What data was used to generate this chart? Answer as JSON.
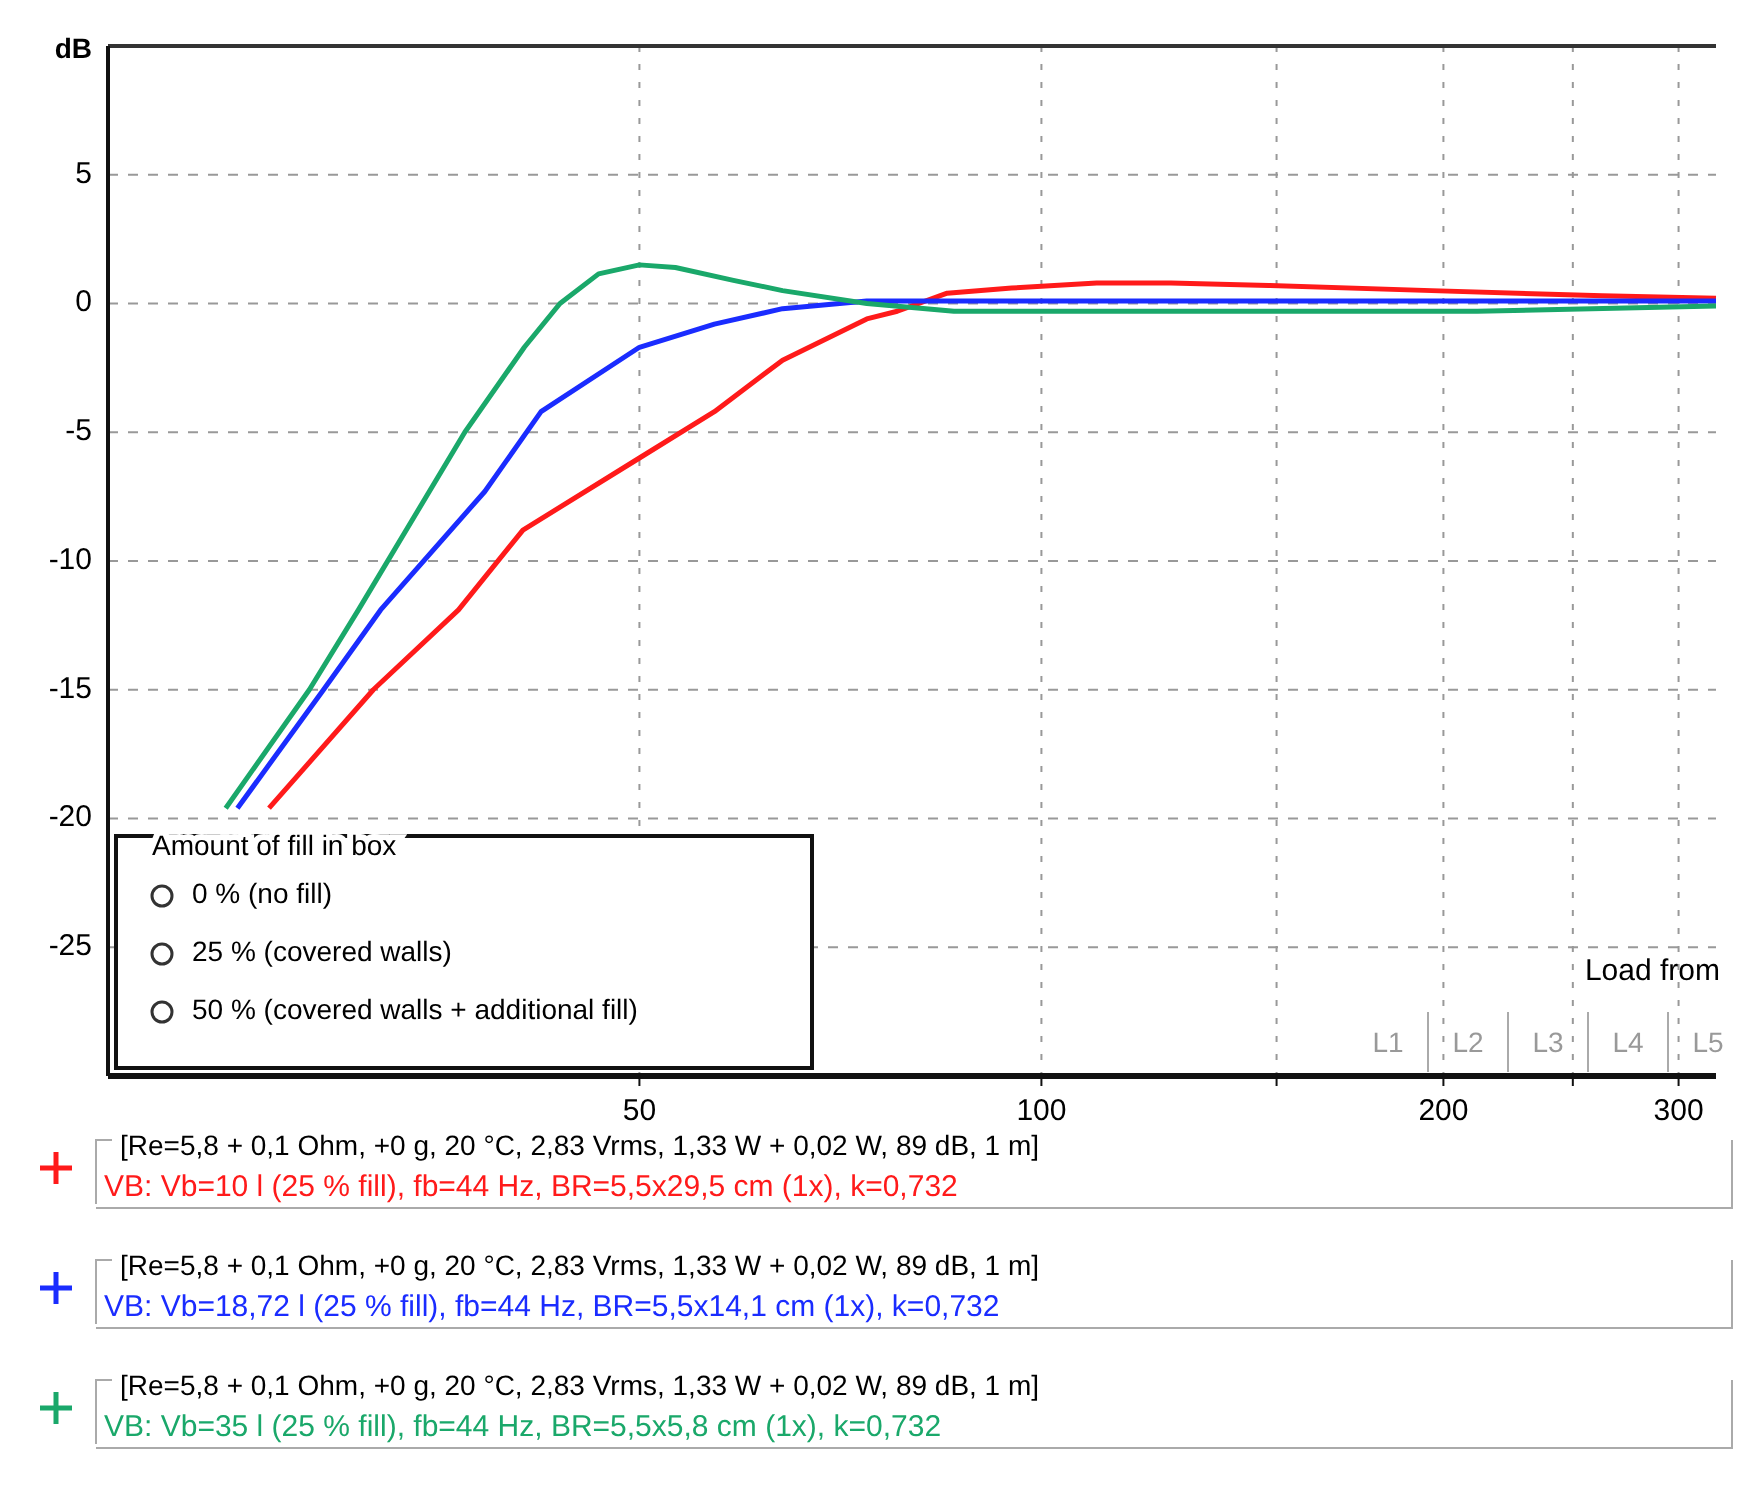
{
  "chart_data": {
    "type": "line",
    "ylabel": "dB",
    "log": "x",
    "xlim": [
      20,
      320
    ],
    "xticks": [
      50,
      100,
      {
        "value": 150,
        "label": null
      },
      200,
      {
        "value": 250,
        "label": null
      },
      300
    ],
    "ylim": [
      -30,
      10
    ],
    "yticks": [
      -25,
      -20,
      -15,
      -10,
      -5,
      0,
      5
    ],
    "grid": true,
    "legend": "bottom",
    "line_style": "solid",
    "marker": "none",
    "series": [
      {
        "name": "VB: Vb=10 l (25 % fill), fb=44 Hz, BR=5,5x29,5 cm (1x), k=0,732",
        "color": "#ff1a1a",
        "x": [
          26.4,
          31.6,
          36.6,
          40.9,
          50,
          56.9,
          64,
          74,
          78,
          85,
          95,
          110,
          125,
          148,
          196,
          263,
          320
        ],
        "values": [
          -19.6,
          -15,
          -11.9,
          -8.8,
          -6,
          -4.2,
          -2.2,
          -0.6,
          -0.3,
          0.4,
          0.6,
          0.8,
          0.8,
          0.7,
          0.5,
          0.3,
          0.2
        ]
      },
      {
        "name": "VB: Vb=18,72 l (25 % fill), fb=44 Hz, BR=5,5x14,1 cm (1x), k=0,732",
        "color": "#1a2cff",
        "x": [
          25,
          29,
          32,
          38.3,
          42.2,
          50,
          56.9,
          64,
          74,
          100,
          200,
          320
        ],
        "values": [
          -19.6,
          -15,
          -11.9,
          -7.3,
          -4.2,
          -1.7,
          -0.8,
          -0.2,
          0.1,
          0.1,
          0.1,
          0.1
        ]
      },
      {
        "name": "VB: Vb=35 l (25 % fill), fb=44 Hz, BR=5,5x5,8 cm (1x), k=0,732",
        "color": "#1aa86a",
        "x": [
          24.5,
          28.3,
          30.8,
          37,
          41,
          43.6,
          46.6,
          50,
          53.2,
          58.8,
          64,
          74,
          86,
          148,
          212,
          320
        ],
        "values": [
          -19.6,
          -15,
          -11.9,
          -5,
          -1.7,
          0,
          1.15,
          1.5,
          1.4,
          0.9,
          0.5,
          0,
          -0.3,
          -0.3,
          -0.3,
          -0.1
        ]
      }
    ],
    "annotations": [
      "Amount of fill in box",
      "0 % (no fill)",
      "25 % (covered walls)",
      "50 % (covered walls + additional fill)",
      "Load from",
      "L1",
      "L2",
      "L3",
      "L4",
      "L5",
      "[Re=5,8 + 0,1 Ohm, +0 g, 20 °C, 2,83 Vrms, 1,33 W + 0,02 W, 89 dB, 1 m]",
      "[Re=5,8 + 0,1 Ohm, +0 g, 20 °C, 2,83 Vrms, 1,33 W + 0,02 W, 89 dB, 1 m]",
      "[Re=5,8 + 0,1 Ohm, +0 g, 20 °C, 2,83 Vrms, 1,33 W + 0,02 W, 89 dB, 1 m]"
    ]
  }
}
